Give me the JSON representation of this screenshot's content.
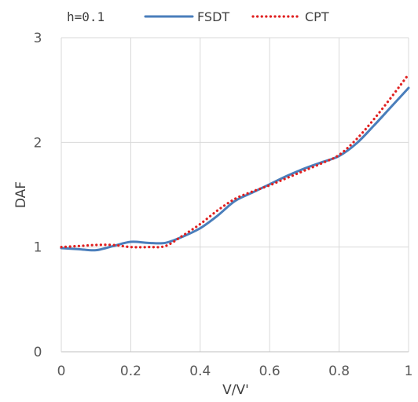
{
  "chart_data": {
    "type": "line",
    "annotation": "h=0.1",
    "xlabel": "V/V'",
    "ylabel": "DAF",
    "xlim": [
      0,
      1
    ],
    "ylim": [
      0,
      3
    ],
    "x_ticks": [
      "0",
      "0.2",
      "0.4",
      "0.6",
      "0.8",
      "1"
    ],
    "y_ticks": [
      "0",
      "1",
      "2",
      "3"
    ],
    "x_tick_values": [
      0,
      0.2,
      0.4,
      0.6,
      0.8,
      1
    ],
    "y_tick_values": [
      0,
      1,
      2,
      3
    ],
    "grid": true,
    "legend_position": "top",
    "series": [
      {
        "name": "FSDT",
        "color": "#4a7ebb",
        "style": "solid",
        "x": [
          0,
          0.05,
          0.1,
          0.15,
          0.2,
          0.25,
          0.3,
          0.35,
          0.4,
          0.45,
          0.5,
          0.55,
          0.6,
          0.65,
          0.7,
          0.75,
          0.8,
          0.85,
          0.9,
          0.95,
          1.0
        ],
        "y": [
          0.99,
          0.98,
          0.97,
          1.01,
          1.05,
          1.04,
          1.04,
          1.1,
          1.18,
          1.3,
          1.44,
          1.52,
          1.6,
          1.68,
          1.75,
          1.81,
          1.87,
          1.99,
          2.16,
          2.34,
          2.52
        ]
      },
      {
        "name": "CPT",
        "color": "#e02020",
        "style": "dotted",
        "x": [
          0,
          0.05,
          0.1,
          0.15,
          0.2,
          0.25,
          0.3,
          0.35,
          0.4,
          0.45,
          0.5,
          0.55,
          0.6,
          0.65,
          0.7,
          0.75,
          0.8,
          0.85,
          0.9,
          0.95,
          1.0
        ],
        "y": [
          1.0,
          1.01,
          1.02,
          1.02,
          1.0,
          1.0,
          1.01,
          1.11,
          1.22,
          1.35,
          1.46,
          1.53,
          1.59,
          1.66,
          1.73,
          1.8,
          1.88,
          2.03,
          2.22,
          2.43,
          2.65
        ]
      }
    ]
  }
}
